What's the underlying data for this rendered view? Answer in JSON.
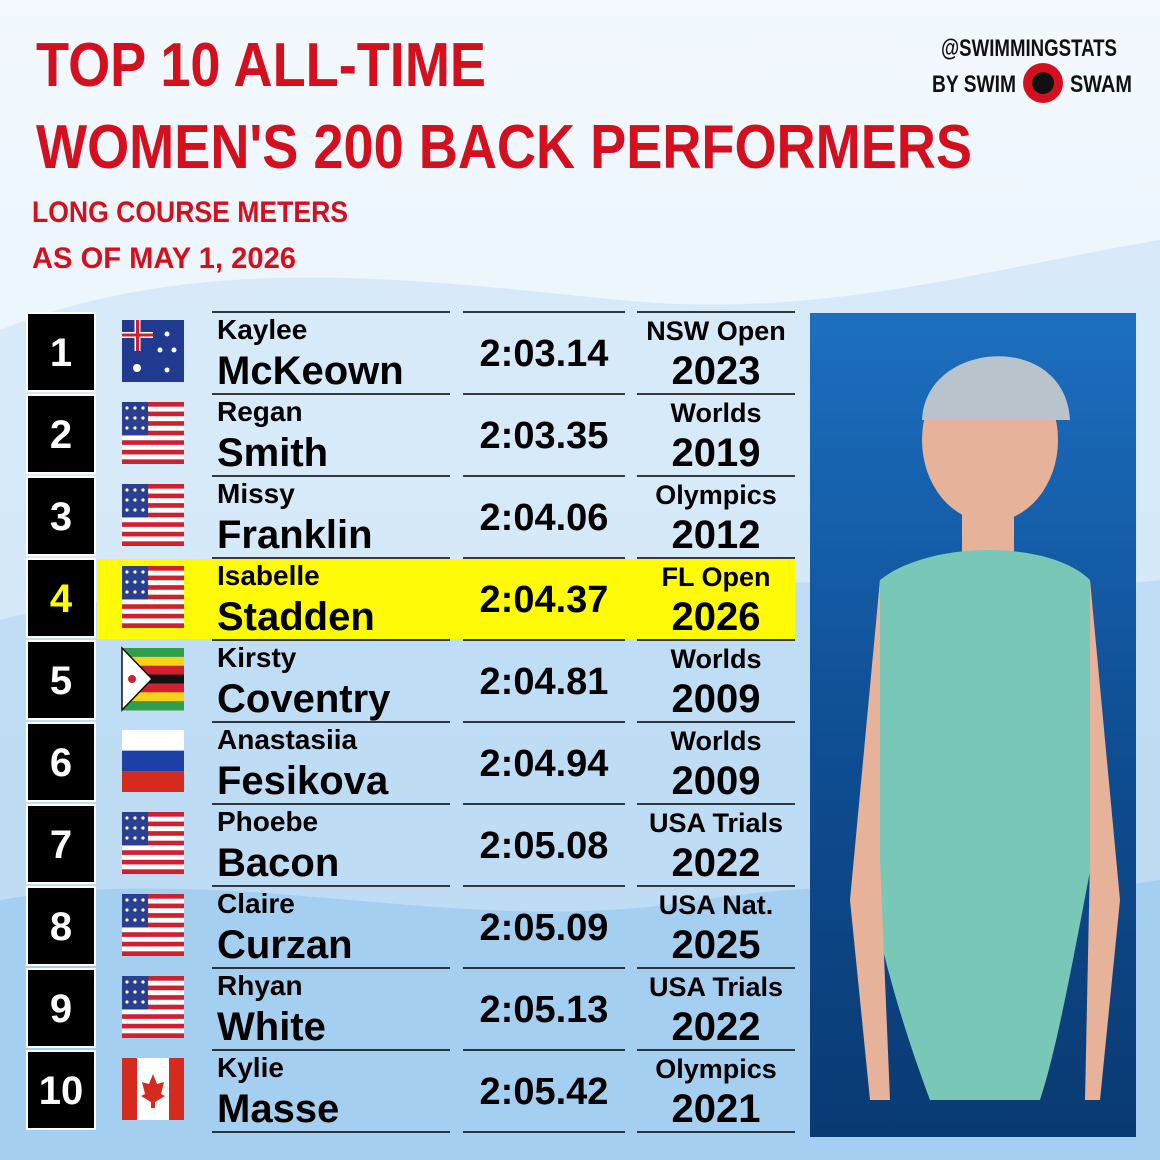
{
  "header": {
    "title": [
      "TOP 10 ALL-TIME",
      "WOMEN'S 200 BACK PERFORMERS"
    ],
    "subtitle": [
      "LONG COURSE METERS",
      "AS OF MAY 1, 2026"
    ],
    "brand": {
      "handle": "@SWIMMINGSTATS",
      "by": "BY SWIM",
      "name": "SWAM"
    }
  },
  "table": {
    "rows": [
      {
        "rank": 1,
        "first": "Kaylee",
        "last": "McKeown",
        "time": "2:03.14",
        "meet": "NSW Open",
        "year": 2023
      },
      {
        "rank": 2,
        "first": "Regan",
        "last": "Smith",
        "time": "2:03.35",
        "meet": "Worlds",
        "year": 2019
      },
      {
        "rank": 3,
        "first": "Missy",
        "last": "Franklin",
        "time": "2:04.06",
        "meet": "Olympics",
        "year": 2012
      },
      {
        "rank": 4,
        "first": "Isabelle",
        "last": "Stadden",
        "time": "2:04.37",
        "meet": "FL Open",
        "year": 2026,
        "highlight": true
      },
      {
        "rank": 5,
        "first": "Kirsty",
        "last": "Coventry",
        "time": "2:04.81",
        "meet": "Worlds",
        "year": 2009
      },
      {
        "rank": 6,
        "first": "Anastasiia",
        "last": "Fesikova",
        "time": "2:04.94",
        "meet": "Worlds",
        "year": 2009
      },
      {
        "rank": 7,
        "first": "Phoebe",
        "last": "Bacon",
        "time": "2:05.08",
        "meet": "USA Trials",
        "year": 2022
      },
      {
        "rank": 8,
        "first": "Claire",
        "last": "Curzan",
        "time": "2:05.09",
        "meet": "USA Nat.",
        "year": 2025
      },
      {
        "rank": 9,
        "first": "Rhyan",
        "last": "White",
        "time": "2:05.13",
        "meet": "USA Trials",
        "year": 2022
      },
      {
        "rank": 10,
        "first": "Kylie",
        "last": "Masse",
        "time": "2:05.42",
        "meet": "Olympics",
        "year": 2021
      }
    ]
  }
}
